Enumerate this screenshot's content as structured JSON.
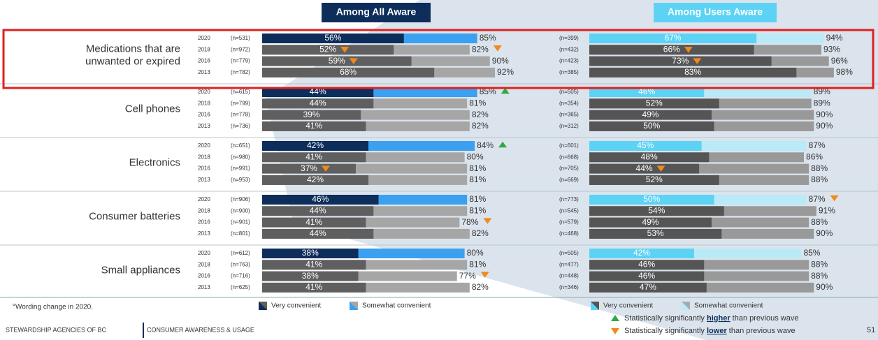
{
  "chart_data": {
    "type": "bar",
    "panels": [
      {
        "title": "Among All Aware",
        "highlight_colors": [
          "#0d2d5a",
          "#3ba0f0"
        ],
        "colors": [
          "#5f5f5f",
          "#a6a6a6"
        ],
        "groups": [
          {
            "name": [
              "Medications that are",
              "unwanted or expired"
            ],
            "rows": [
              {
                "year": "2020",
                "n": "(n=531)",
                "very": 56,
                "very_label": "56%",
                "total": 85,
                "total_label": "85%"
              },
              {
                "year": "2018",
                "n": "(n=972)",
                "very": 52,
                "very_label": "52%",
                "very_sig": "lower",
                "total": 82,
                "total_label": "82%",
                "total_sig": "lower"
              },
              {
                "year": "2016",
                "n": "(n=779)",
                "very": 59,
                "very_label": "59%",
                "very_sig": "lower",
                "total": 90,
                "total_label": "90%"
              },
              {
                "year": "2013",
                "n": "(n=782)",
                "very": 68,
                "very_label": "68%",
                "total": 92,
                "total_label": "92%"
              }
            ]
          },
          {
            "name": [
              "Cell phones"
            ],
            "rows": [
              {
                "year": "2020",
                "n": "(n=615)",
                "very": 44,
                "very_label": "44%",
                "total": 85,
                "total_label": "85%",
                "total_sig": "higher"
              },
              {
                "year": "2018",
                "n": "(n=799)",
                "very": 44,
                "very_label": "44%",
                "total": 81,
                "total_label": "81%"
              },
              {
                "year": "2016",
                "n": "(n=778)",
                "very": 39,
                "very_label": "39%",
                "total": 82,
                "total_label": "82%"
              },
              {
                "year": "2013",
                "n": "(n=736)",
                "very": 41,
                "very_label": "41%",
                "total": 82,
                "total_label": "82%"
              }
            ]
          },
          {
            "name": [
              "Electronics"
            ],
            "rows": [
              {
                "year": "2020",
                "n": "(n=651)",
                "very": 42,
                "very_label": "42%",
                "total": 84,
                "total_label": "84%",
                "total_sig": "higher"
              },
              {
                "year": "2018",
                "n": "(n=980)",
                "very": 41,
                "very_label": "41%",
                "total": 80,
                "total_label": "80%"
              },
              {
                "year": "2016",
                "n": "(n=991)",
                "very": 37,
                "very_label": "37%",
                "very_sig": "lower",
                "total": 81,
                "total_label": "81%"
              },
              {
                "year": "2013",
                "n": "(n=953)",
                "very": 42,
                "very_label": "42%",
                "total": 81,
                "total_label": "81%"
              }
            ]
          },
          {
            "name": [
              "Consumer batteries"
            ],
            "rows": [
              {
                "year": "2020",
                "n": "(n=906)",
                "very": 46,
                "very_label": "46%",
                "total": 81,
                "total_label": "81%"
              },
              {
                "year": "2018",
                "n": "(n=900)",
                "very": 44,
                "very_label": "44%",
                "total": 81,
                "total_label": "81%"
              },
              {
                "year": "2016",
                "n": "(n=901)",
                "very": 41,
                "very_label": "41%",
                "total": 78,
                "total_label": "78%",
                "total_sig": "lower"
              },
              {
                "year": "2013",
                "n": "(n=801)",
                "very": 44,
                "very_label": "44%",
                "total": 82,
                "total_label": "82%"
              }
            ]
          },
          {
            "name": [
              "Small appliances"
            ],
            "rows": [
              {
                "year": "2020",
                "n": "(n=612)",
                "very": 38,
                "very_label": "38%",
                "total": 80,
                "total_label": "80%"
              },
              {
                "year": "2018",
                "n": "(n=763)",
                "very": 41,
                "very_label": "41%",
                "total": 81,
                "total_label": "81%"
              },
              {
                "year": "2016",
                "n": "(n=716)",
                "very": 38,
                "very_label": "38%",
                "total": 77,
                "total_label": "77%",
                "total_sig": "lower"
              },
              {
                "year": "2013",
                "n": "(n=625)",
                "very": 41,
                "very_label": "41%",
                "total": 82,
                "total_label": "82%"
              }
            ]
          }
        ]
      },
      {
        "title": "Among Users Aware",
        "highlight_colors": [
          "#5cd3f5",
          "#b9eaf7"
        ],
        "colors": [
          "#555555",
          "#999999"
        ],
        "groups": [
          {
            "rows": [
              {
                "n": "(n=399)",
                "very": 67,
                "very_label": "67%",
                "total": 94,
                "total_label": "94%"
              },
              {
                "n": "(n=432)",
                "very": 66,
                "very_label": "66%",
                "very_sig": "lower",
                "total": 93,
                "total_label": "93%"
              },
              {
                "n": "(n=423)",
                "very": 73,
                "very_label": "73%",
                "very_sig": "lower",
                "total": 96,
                "total_label": "96%"
              },
              {
                "n": "(n=385)",
                "very": 83,
                "very_label": "83%",
                "total": 98,
                "total_label": "98%"
              }
            ]
          },
          {
            "rows": [
              {
                "n": "(n=505)",
                "very": 46,
                "very_label": "46%",
                "total": 89,
                "total_label": "89%"
              },
              {
                "n": "(n=354)",
                "very": 52,
                "very_label": "52%",
                "total": 89,
                "total_label": "89%"
              },
              {
                "n": "(n=365)",
                "very": 49,
                "very_label": "49%",
                "total": 90,
                "total_label": "90%"
              },
              {
                "n": "(n=312)",
                "very": 50,
                "very_label": "50%",
                "total": 90,
                "total_label": "90%"
              }
            ]
          },
          {
            "rows": [
              {
                "n": "(n=601)",
                "very": 45,
                "very_label": "45%",
                "total": 87,
                "total_label": "87%"
              },
              {
                "n": "(n=668)",
                "very": 48,
                "very_label": "48%",
                "total": 86,
                "total_label": "86%"
              },
              {
                "n": "(n=705)",
                "very": 44,
                "very_label": "44%",
                "very_sig": "lower",
                "total": 88,
                "total_label": "88%"
              },
              {
                "n": "(n=669)",
                "very": 52,
                "very_label": "52%",
                "total": 88,
                "total_label": "88%"
              }
            ]
          },
          {
            "rows": [
              {
                "n": "(n=773)",
                "very": 50,
                "very_label": "50%",
                "total": 87,
                "total_label": "87%",
                "total_sig": "lower"
              },
              {
                "n": "(n=545)",
                "very": 54,
                "very_label": "54%",
                "total": 91,
                "total_label": "91%"
              },
              {
                "n": "(n=579)",
                "very": 49,
                "very_label": "49%",
                "total": 88,
                "total_label": "88%"
              },
              {
                "n": "(n=468)",
                "very": 53,
                "very_label": "53%",
                "total": 90,
                "total_label": "90%"
              }
            ]
          },
          {
            "rows": [
              {
                "n": "(n=505)",
                "very": 42,
                "very_label": "42%",
                "total": 85,
                "total_label": "85%"
              },
              {
                "n": "(n=477)",
                "very": 46,
                "very_label": "46%",
                "total": 88,
                "total_label": "88%"
              },
              {
                "n": "(n=448)",
                "very": 46,
                "very_label": "46%",
                "total": 88,
                "total_label": "88%"
              },
              {
                "n": "(n=346)",
                "very": 47,
                "very_label": "47%",
                "total": 90,
                "total_label": "90%"
              }
            ]
          }
        ]
      }
    ],
    "xlim": [
      0,
      100
    ],
    "legend": {
      "very": "Very convenient",
      "somewhat": "Somewhat convenient"
    },
    "sig_colors": {
      "higher": "#2ea84a",
      "lower": "#f0891f"
    },
    "sig_legend": {
      "higher": [
        "Statistically significantly ",
        "higher",
        " than previous wave"
      ],
      "lower": [
        "Statistically significantly ",
        "lower",
        " than previous wave"
      ]
    },
    "note": "°Wording change in 2020.",
    "footer": [
      "STEWARDSHIP AGENCIES OF BC",
      "CONSUMER AWARENESS & USAGE"
    ],
    "page": "51"
  }
}
